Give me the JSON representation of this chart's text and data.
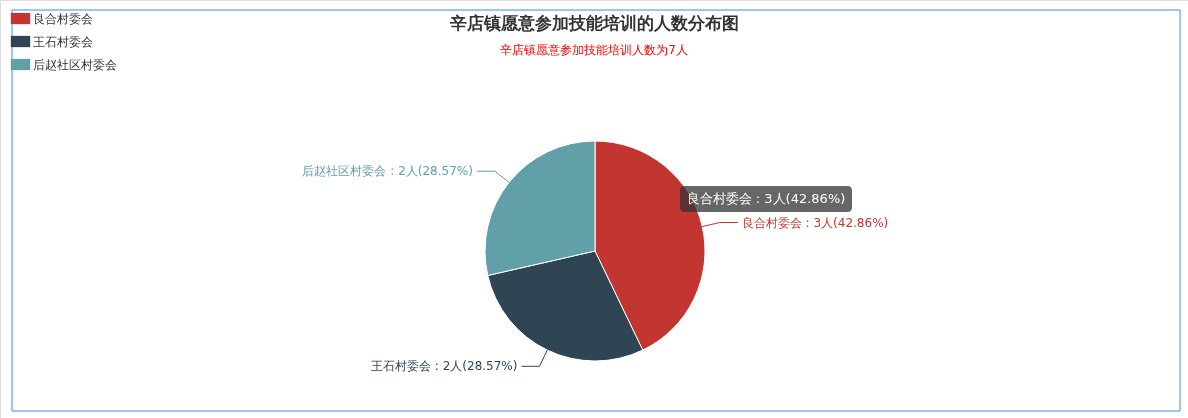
{
  "chart_data": {
    "type": "pie",
    "title": "辛店镇愿意参加技能培训的人数分布图",
    "subtitle": "辛店镇愿意参加技能培训人数为7人",
    "categories": [
      "良合村委会",
      "王石村委会",
      "后赵社区村委会"
    ],
    "values": [
      3,
      2,
      2
    ],
    "colors": [
      "#c23531",
      "#2f4554",
      "#61a0a8"
    ],
    "value_labels": [
      "良合村委会 : 3人(42.86%)",
      "王石村委会 : 2人(28.57%)",
      "后赵社区村委会 : 2人(28.57%)"
    ],
    "annotations": [
      "良合村委会 : 3人(42.86%)"
    ],
    "legend": "top left"
  }
}
